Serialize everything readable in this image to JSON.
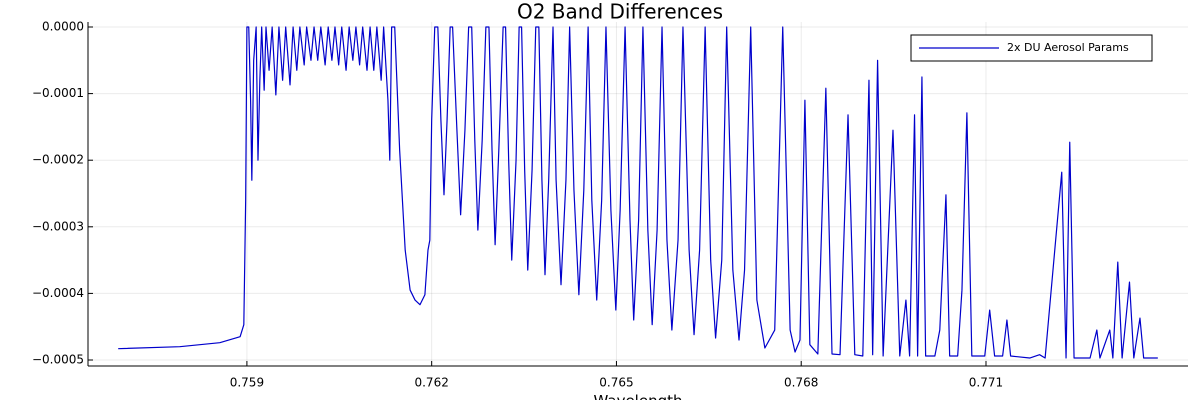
{
  "chart_data": {
    "type": "line",
    "title": "O2 Band Differences",
    "x_label": "Wavelength",
    "xlim": [
      0.75642,
      0.77428
    ],
    "xticks": [
      0.759,
      0.762,
      0.765,
      0.768,
      0.771
    ],
    "ylim": [
      -0.000509,
      7.5e-06
    ],
    "yticks": [
      {
        "value": 0,
        "label": "0.0000"
      },
      {
        "value": -0.0001,
        "label": "−0.0001"
      },
      {
        "value": -0.0002,
        "label": "−0.0002"
      },
      {
        "value": -0.0003,
        "label": "−0.0003"
      },
      {
        "value": -0.0004,
        "label": "−0.0004"
      },
      {
        "value": -0.0005,
        "label": "−0.0005"
      }
    ],
    "grid": true,
    "legend": "top-right",
    "x": [
      0.75691,
      0.75791,
      0.75856,
      0.75889,
      0.75895,
      0.75898,
      0.759,
      0.75903,
      0.75906,
      0.75908,
      0.75911,
      0.75915,
      0.75918,
      0.75921,
      0.75924,
      0.75928,
      0.75931,
      0.75936,
      0.75941,
      0.75947,
      0.75952,
      0.75958,
      0.75963,
      0.7597,
      0.75975,
      0.75981,
      0.75986,
      0.75993,
      0.75997,
      0.76004,
      0.76009,
      0.76015,
      0.7602,
      0.76027,
      0.76032,
      0.76038,
      0.76043,
      0.76049,
      0.76054,
      0.76061,
      0.76066,
      0.76072,
      0.76077,
      0.76083,
      0.76088,
      0.76095,
      0.761,
      0.76106,
      0.76111,
      0.76118,
      0.76122,
      0.76129,
      0.76132,
      0.76135,
      0.7614,
      0.76148,
      0.76157,
      0.76165,
      0.76173,
      0.76181,
      0.76189,
      0.76194,
      0.76197,
      0.762,
      0.76205,
      0.7621,
      0.76215,
      0.7622,
      0.76225,
      0.7623,
      0.76234,
      0.76241,
      0.76247,
      0.76254,
      0.7626,
      0.76265,
      0.7627,
      0.76275,
      0.76282,
      0.76288,
      0.76293,
      0.76298,
      0.76303,
      0.76309,
      0.76316,
      0.7632,
      0.76325,
      0.7633,
      0.76337,
      0.76342,
      0.76346,
      0.76351,
      0.76356,
      0.76363,
      0.76369,
      0.76374,
      0.76379,
      0.76384,
      0.7639,
      0.76397,
      0.76402,
      0.7641,
      0.76418,
      0.76424,
      0.76431,
      0.76439,
      0.76447,
      0.76454,
      0.7646,
      0.76468,
      0.76476,
      0.76483,
      0.76491,
      0.76499,
      0.76506,
      0.76514,
      0.76522,
      0.76528,
      0.76536,
      0.76543,
      0.76551,
      0.76558,
      0.76566,
      0.76574,
      0.76582,
      0.7659,
      0.766,
      0.76608,
      0.76618,
      0.76626,
      0.76635,
      0.76644,
      0.76653,
      0.76661,
      0.76671,
      0.76679,
      0.76689,
      0.76699,
      0.76708,
      0.76718,
      0.76728,
      0.76741,
      0.76757,
      0.7677,
      0.76782,
      0.7679,
      0.76798,
      0.76806,
      0.76814,
      0.76827,
      0.7684,
      0.7685,
      0.76863,
      0.76876,
      0.76887,
      0.769,
      0.7691,
      0.76916,
      0.76924,
      0.76933,
      0.76949,
      0.7696,
      0.7697,
      0.76976,
      0.76984,
      0.76989,
      0.76996,
      0.77002,
      0.77017,
      0.77025,
      0.77035,
      0.77041,
      0.77054,
      0.77061,
      0.77069,
      0.77077,
      0.77098,
      0.77106,
      0.77114,
      0.77127,
      0.77134,
      0.7714,
      0.77171,
      0.77187,
      0.77196,
      0.77223,
      0.7723,
      0.77236,
      0.77243,
      0.77269,
      0.7728,
      0.77285,
      0.77301,
      0.77306,
      0.77314,
      0.77321,
      0.77333,
      0.7734,
      0.7735,
      0.77356,
      0.77379
    ],
    "series": [
      {
        "name": "2x DU Aerosol Params",
        "color": "#0000cc",
        "values": [
          -0.000483,
          -0.00048,
          -0.000474,
          -0.000465,
          -0.000447,
          -0.00026,
          0,
          0,
          -0.00011,
          -0.00023,
          -5e-05,
          0,
          -0.0002,
          -8e-05,
          0,
          -9.5e-05,
          0,
          -6.5e-05,
          0,
          -0.000102,
          0,
          -8e-05,
          0,
          -8.7e-05,
          0,
          -6.5e-05,
          0,
          -5.7e-05,
          0,
          -5e-05,
          0,
          -5e-05,
          0,
          -5.7e-05,
          0,
          -5e-05,
          0,
          -5.7e-05,
          0,
          -6.5e-05,
          0,
          -5e-05,
          0,
          -5.7e-05,
          0,
          -6.5e-05,
          0,
          -6.5e-05,
          0,
          -8e-05,
          0,
          -0.00011,
          -0.0002,
          0,
          0,
          -0.000185,
          -0.000335,
          -0.000395,
          -0.00041,
          -0.000417,
          -0.000402,
          -0.000335,
          -0.00032,
          -0.00014,
          0,
          0,
          -0.00014,
          -0.000252,
          -0.00014,
          0,
          0,
          -0.000155,
          -0.000282,
          -0.000155,
          0,
          0,
          -0.00017,
          -0.000305,
          -0.00017,
          0,
          0,
          -0.000185,
          -0.000327,
          -0.000185,
          0,
          0,
          -0.0002,
          -0.00035,
          -0.0002,
          0,
          0,
          -0.000215,
          -0.000365,
          -0.000215,
          0,
          0,
          -0.00023,
          -0.000372,
          -0.00023,
          0,
          -0.00023,
          -0.000387,
          -0.00023,
          0,
          -0.000245,
          -0.000402,
          -0.000245,
          0,
          -0.00026,
          -0.00041,
          -0.00026,
          0,
          -0.000275,
          -0.000425,
          -0.000275,
          0,
          -0.00029,
          -0.00044,
          -0.00029,
          0,
          -0.000305,
          -0.000447,
          -0.000305,
          0,
          -0.00032,
          -0.000455,
          -0.00032,
          0,
          -0.000335,
          -0.000462,
          -0.000335,
          0,
          -0.00035,
          -0.000467,
          -0.00035,
          0,
          -0.000365,
          -0.00047,
          -0.000365,
          0,
          -0.00041,
          -0.000482,
          -0.000455,
          0,
          -0.000455,
          -0.000488,
          -0.00047,
          -0.00011,
          -0.000477,
          -0.000491,
          -9.2e-05,
          -0.000491,
          -0.000492,
          -0.000132,
          -0.000492,
          -0.000494,
          -8e-05,
          -0.000492,
          -5e-05,
          -0.000494,
          -0.000155,
          -0.000494,
          -0.00041,
          -0.000494,
          -0.000132,
          -0.000494,
          -7.5e-05,
          -0.000494,
          -0.000494,
          -0.000455,
          -0.000252,
          -0.000494,
          -0.000494,
          -0.000395,
          -0.000129,
          -0.000494,
          -0.000494,
          -0.000425,
          -0.000494,
          -0.000494,
          -0.00044,
          -0.000494,
          -0.000497,
          -0.000492,
          -0.000497,
          -0.000218,
          -0.000497,
          -0.000173,
          -0.000497,
          -0.000497,
          -0.000455,
          -0.000497,
          -0.000455,
          -0.000497,
          -0.000353,
          -0.000497,
          -0.000383,
          -0.000497,
          -0.000437,
          -0.000497,
          -0.000497
        ]
      }
    ]
  }
}
